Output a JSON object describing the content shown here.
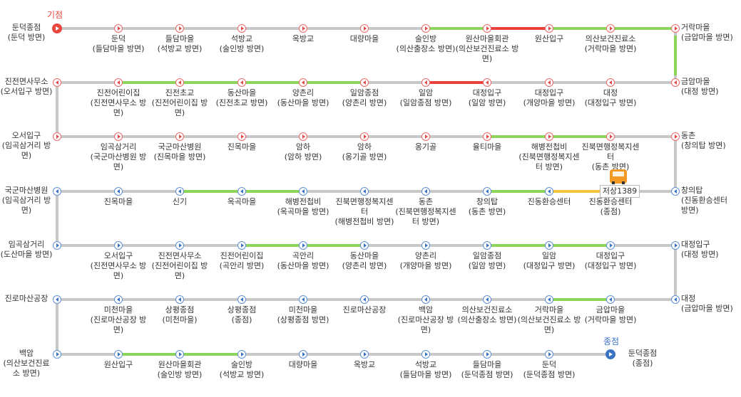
{
  "terminals": {
    "start_label": "기점",
    "end_label": "종점",
    "start_color": "#e8463e",
    "end_color": "#3a72c4"
  },
  "colors": {
    "track": "#c8c8c8",
    "green": "#8cd55a",
    "red": "#e8413e",
    "yellow": "#f7c23c"
  },
  "rows": [
    {
      "dir": "r",
      "left": {
        "name": "둔덕종점",
        "sub": "(둔덕 방면)"
      },
      "stops": [
        {
          "name": "둔덕",
          "sub": "(들담마을 방면)"
        },
        {
          "name": "들담마을",
          "sub": "(석방교 방면)"
        },
        {
          "name": "석방교",
          "sub": "(술인방 방면)"
        },
        {
          "name": "옥방교",
          "sub": ""
        },
        {
          "name": "대량마을",
          "sub": ""
        },
        {
          "name": "술인방",
          "sub": "(의산출장소 방면)"
        },
        {
          "name": "원산마을회관",
          "sub": "(의산보건진료소 방면)"
        },
        {
          "name": "원산입구",
          "sub": ""
        },
        {
          "name": "의산보건진료소",
          "sub": "(거락마을 방면)"
        }
      ],
      "right": {
        "name": "거락마을",
        "sub": "(금압마을 방면)"
      }
    },
    {
      "dir": "l",
      "left": {
        "name": "진전면사무소",
        "sub": "(오서입구 방면)"
      },
      "stops": [
        {
          "name": "진전어린이집",
          "sub": "(진전면사무소 방면)"
        },
        {
          "name": "진전초교",
          "sub": "(진전어린이집 방면)"
        },
        {
          "name": "동산마을",
          "sub": "(진전초교 방면)"
        },
        {
          "name": "양촌리",
          "sub": "(동산마을 방면)"
        },
        {
          "name": "일암종점",
          "sub": "(양촌리 방면)"
        },
        {
          "name": "일암",
          "sub": "(일암종점 방면)"
        },
        {
          "name": "대정입구",
          "sub": "(일암 방면)"
        },
        {
          "name": "대정입구",
          "sub": "(개양마을 방면)"
        },
        {
          "name": "대정",
          "sub": "(대정입구 방면)"
        }
      ],
      "right": {
        "name": "금암마을",
        "sub": "(대정 방면)"
      }
    },
    {
      "dir": "r",
      "left": {
        "name": "오서입구",
        "sub": "(임곡삼거리 방면)"
      },
      "stops": [
        {
          "name": "임곡삼거리",
          "sub": "(국군마산병원 방면)"
        },
        {
          "name": "국군마산병원",
          "sub": "(진목마을 방면)"
        },
        {
          "name": "진목마을",
          "sub": ""
        },
        {
          "name": "암하",
          "sub": "(암하 방면)"
        },
        {
          "name": "암하",
          "sub": "(옹기골 방면)"
        },
        {
          "name": "옹기골",
          "sub": ""
        },
        {
          "name": "율티마을",
          "sub": ""
        },
        {
          "name": "해병전첩비",
          "sub": "(진북면행정복지센터 방면)"
        },
        {
          "name": "진북면행정복지센터",
          "sub": "(동촌 방면)"
        }
      ],
      "right": {
        "name": "동촌",
        "sub": "(창의탑 방면)"
      }
    },
    {
      "dir": "lb",
      "left": {
        "name": "국군마산병원",
        "sub": "(임곡삼거리 방면)"
      },
      "stops": [
        {
          "name": "진목마을",
          "sub": ""
        },
        {
          "name": "신기",
          "sub": ""
        },
        {
          "name": "옥곡마을",
          "sub": ""
        },
        {
          "name": "해병전첩비",
          "sub": "(옥곡마을 방면)"
        },
        {
          "name": "진북면행정복지센터",
          "sub": "(해병전첩비 방면)"
        },
        {
          "name": "동촌",
          "sub": "(진북면행정복지센터 방면)"
        },
        {
          "name": "창의탑",
          "sub": "(동촌 방면)"
        },
        {
          "name": "진동환승센터",
          "sub": ""
        },
        {
          "name": "진동환승센터",
          "sub": "(종점)"
        }
      ],
      "right": {
        "name": "창의탑",
        "sub": "(진동환승센터 방면)"
      }
    },
    {
      "dir": "rb",
      "left": {
        "name": "임곡삼거리",
        "sub": "(도산마을 방면)"
      },
      "stops": [
        {
          "name": "오서입구",
          "sub": "(진전면사무소 방면)"
        },
        {
          "name": "진전면사무소",
          "sub": "(진전어린이집 방면)"
        },
        {
          "name": "진전어린이집",
          "sub": "(곡안리 방면)"
        },
        {
          "name": "곡안리",
          "sub": "(동산마을 방면)"
        },
        {
          "name": "동산마을",
          "sub": "(양촌리 방면)"
        },
        {
          "name": "양촌리",
          "sub": "(개양마을 방면)"
        },
        {
          "name": "일암종점",
          "sub": "(일암 방면)"
        },
        {
          "name": "일암",
          "sub": "(대정입구 방면)"
        },
        {
          "name": "대정입구",
          "sub": "(대정입구 방면)"
        }
      ],
      "right": {
        "name": "대정입구",
        "sub": "(대정 방면)"
      }
    },
    {
      "dir": "lb",
      "left": {
        "name": "진로마산공장",
        "sub": ""
      },
      "stops": [
        {
          "name": "미천마을",
          "sub": "(진로마산공장 방면)"
        },
        {
          "name": "상평종점",
          "sub": "(미천마을)"
        },
        {
          "name": "상평종점",
          "sub": "(종점)"
        },
        {
          "name": "미천마을",
          "sub": "(상평종점 방면)"
        },
        {
          "name": "진로마산공장",
          "sub": ""
        },
        {
          "name": "백암",
          "sub": "(진로마산공장 방면)"
        },
        {
          "name": "의산보건진료소",
          "sub": "(의산출장소 방면)"
        },
        {
          "name": "거락마을",
          "sub": "(의산보건진료소 방면)"
        },
        {
          "name": "금압마을",
          "sub": "(거락마을 방면)"
        }
      ],
      "right": {
        "name": "대정",
        "sub": "(금압마을 방면)"
      }
    },
    {
      "dir": "rb",
      "left": {
        "name": "백암",
        "sub": "(의산보건진료소 방면)"
      },
      "stops": [
        {
          "name": "원산입구",
          "sub": ""
        },
        {
          "name": "원산마을회관",
          "sub": "(술인방 방면)"
        },
        {
          "name": "술인방",
          "sub": "(석방교 방면)"
        },
        {
          "name": "대량마을",
          "sub": ""
        },
        {
          "name": "옥방교",
          "sub": ""
        },
        {
          "name": "석방교",
          "sub": "(들담마을 방면)"
        },
        {
          "name": "들담마을",
          "sub": "(둔덕종점 방면)"
        },
        {
          "name": "둔덕",
          "sub": "(둔덕종점 방면)"
        }
      ],
      "end": {
        "name": "둔덕종점",
        "sub": "(종점)"
      }
    }
  ],
  "bus": {
    "plate": "저상1389",
    "icon": "bus-icon"
  }
}
